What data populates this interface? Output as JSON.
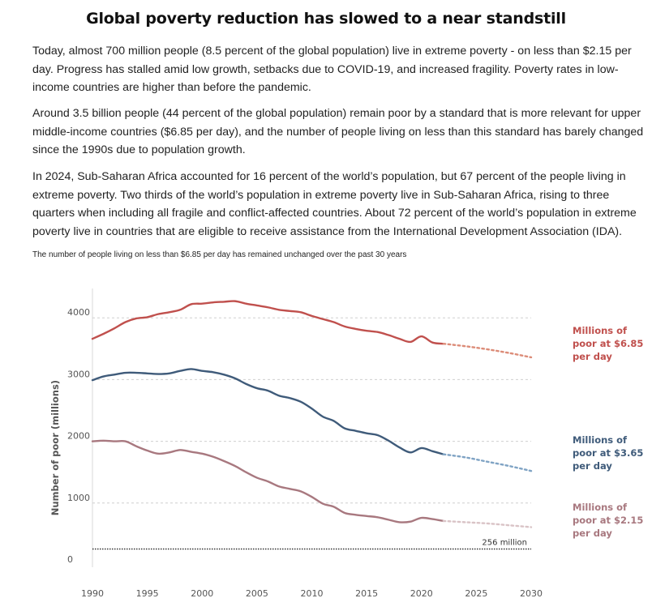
{
  "title": "Global poverty reduction has slowed to a near standstill",
  "paragraphs": [
    "Today, almost 700 million people (8.5 percent of the global population) live in extreme poverty - on less than $2.15 per day. Progress has stalled amid low growth, setbacks due to COVID-19, and increased fragility. Poverty rates in low-income countries are higher than before the pandemic.",
    "Around 3.5 billion people (44 percent of the global population) remain poor by a standard that is more relevant for upper middle-income countries ($6.85 per day), and the number of people living on less than this standard has barely changed since the 1990s due to population growth.",
    "In 2024, Sub-Saharan Africa accounted for 16 percent of the world’s population, but 67 percent of the people living in extreme poverty. Two thirds of the world’s population in extreme poverty live in Sub-Saharan Africa, rising to three quarters when including all fragile and conflict-affected countries. About 72 percent of the world’s population in extreme poverty live in countries that are eligible to receive assistance from the International Development Association (IDA)."
  ],
  "caption": "The number of people living on less than $6.85 per day has remained unchanged over the past 30 years",
  "chart_data": {
    "type": "line",
    "title": "",
    "xlabel": "",
    "ylabel": "Number of poor (millions)",
    "xlim": [
      1990,
      2030
    ],
    "ylim": [
      0,
      4400
    ],
    "x_ticks": [
      1990,
      1995,
      2000,
      2005,
      2010,
      2015,
      2020,
      2025,
      2030
    ],
    "y_ticks": [
      0,
      1000,
      2000,
      3000,
      4000
    ],
    "grid": true,
    "legend": "right, labels next to line ends",
    "reference_line": {
      "value": 256,
      "label": "256 million",
      "color": "#333333"
    },
    "series": [
      {
        "name": "Millions of poor at $6.85 per day",
        "label_lines": [
          "Millions of",
          "poor at $6.85",
          "per day"
        ],
        "color": "#c0504d",
        "projection_color": "#dc8c78",
        "x": [
          1990,
          1991,
          1992,
          1993,
          1994,
          1995,
          1996,
          1997,
          1998,
          1999,
          2000,
          2001,
          2002,
          2003,
          2004,
          2005,
          2006,
          2007,
          2008,
          2009,
          2010,
          2011,
          2012,
          2013,
          2014,
          2015,
          2016,
          2017,
          2018,
          2019,
          2020,
          2021,
          2022
        ],
        "values": [
          3660,
          3740,
          3830,
          3930,
          3990,
          4010,
          4060,
          4090,
          4130,
          4220,
          4230,
          4250,
          4260,
          4270,
          4230,
          4200,
          4170,
          4130,
          4110,
          4090,
          4030,
          3980,
          3930,
          3860,
          3820,
          3790,
          3770,
          3720,
          3660,
          3610,
          3700,
          3600,
          3580
        ],
        "projection": {
          "x": [
            2022,
            2024,
            2026,
            2028,
            2030
          ],
          "values": [
            3580,
            3540,
            3490,
            3430,
            3360
          ]
        }
      },
      {
        "name": "Millions of poor at $3.65 per day",
        "label_lines": [
          "Millions of",
          "poor at $3.65",
          "per day"
        ],
        "color": "#3f5b7a",
        "projection_color": "#7fa3c4",
        "x": [
          1990,
          1991,
          1992,
          1993,
          1994,
          1995,
          1996,
          1997,
          1998,
          1999,
          2000,
          2001,
          2002,
          2003,
          2004,
          2005,
          2006,
          2007,
          2008,
          2009,
          2010,
          2011,
          2012,
          2013,
          2014,
          2015,
          2016,
          2017,
          2018,
          2019,
          2020,
          2021,
          2022
        ],
        "values": [
          2990,
          3050,
          3080,
          3110,
          3110,
          3100,
          3090,
          3100,
          3140,
          3170,
          3140,
          3120,
          3080,
          3020,
          2930,
          2860,
          2820,
          2740,
          2700,
          2640,
          2530,
          2400,
          2330,
          2210,
          2170,
          2130,
          2100,
          2010,
          1900,
          1820,
          1890,
          1840,
          1790
        ],
        "projection": {
          "x": [
            2022,
            2024,
            2026,
            2028,
            2030
          ],
          "values": [
            1790,
            1740,
            1670,
            1600,
            1520
          ]
        }
      },
      {
        "name": "Millions of poor at $2.15 per day",
        "label_lines": [
          "Millions of",
          "poor at $2.15",
          "per day"
        ],
        "color": "#a8787f",
        "projection_color": "#d9c3c6",
        "x": [
          1990,
          1991,
          1992,
          1993,
          1994,
          1995,
          1996,
          1997,
          1998,
          1999,
          2000,
          2001,
          2002,
          2003,
          2004,
          2005,
          2006,
          2007,
          2008,
          2009,
          2010,
          2011,
          2012,
          2013,
          2014,
          2015,
          2016,
          2017,
          2018,
          2019,
          2020,
          2021,
          2022
        ],
        "values": [
          2000,
          2010,
          2000,
          2000,
          1920,
          1850,
          1800,
          1820,
          1860,
          1830,
          1800,
          1750,
          1680,
          1600,
          1500,
          1410,
          1350,
          1270,
          1230,
          1190,
          1100,
          990,
          940,
          840,
          810,
          790,
          770,
          730,
          690,
          700,
          760,
          740,
          710
        ],
        "projection": {
          "x": [
            2022,
            2024,
            2026,
            2028,
            2030
          ],
          "values": [
            710,
            690,
            670,
            640,
            610
          ]
        }
      }
    ]
  }
}
